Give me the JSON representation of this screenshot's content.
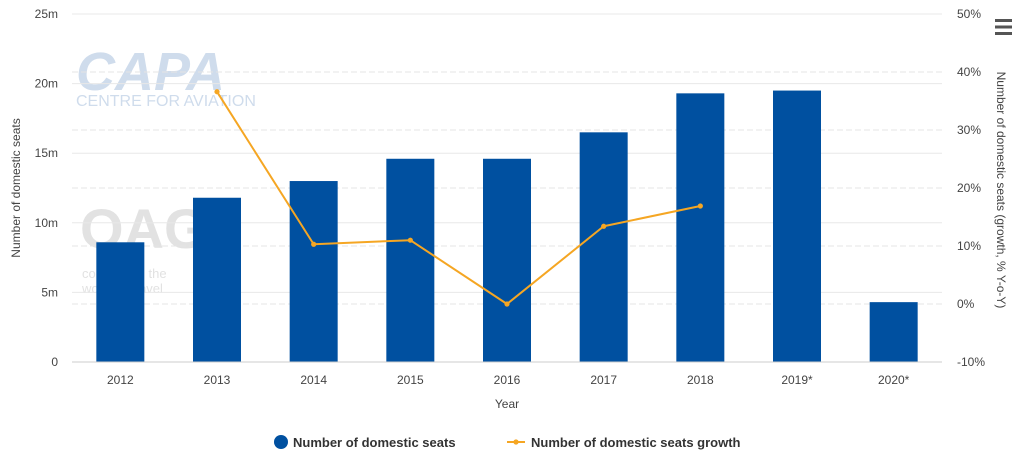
{
  "chart_data": {
    "type": "bar",
    "title": "",
    "xlabel": "Year",
    "ylabel": "Number of domestic seats",
    "y2label": "Number of domestic seats (growth, % Y-o-Y)",
    "categories": [
      "2012",
      "2013",
      "2014",
      "2015",
      "2016",
      "2017",
      "2018",
      "2019*",
      "2020*"
    ],
    "series": [
      {
        "name": "Number of domestic seats",
        "type": "bar",
        "axis": "left",
        "color": "#0050a0",
        "values": [
          8.6,
          11.8,
          13.0,
          14.6,
          14.6,
          16.5,
          19.3,
          19.5,
          4.3
        ]
      },
      {
        "name": "Number of domestic seats growth",
        "type": "line",
        "axis": "right",
        "color": "#f5a623",
        "values": [
          null,
          36.6,
          10.3,
          11.0,
          0.0,
          13.4,
          16.9,
          null,
          null
        ]
      }
    ],
    "ylim": [
      0,
      25
    ],
    "y2lim": [
      -10,
      50
    ],
    "yticks": [
      "0",
      "5m",
      "10m",
      "15m",
      "20m",
      "25m"
    ],
    "y2ticks": [
      "-10%",
      "0%",
      "10%",
      "20%",
      "30%",
      "40%",
      "50%"
    ],
    "grid": true,
    "legend_position": "bottom-center"
  },
  "watermarks": {
    "capa_logo": "CAPA",
    "capa_sub": "CENTRE FOR AVIATION",
    "oag_logo": "OAG",
    "oag_sub_1": "connecting the",
    "oag_sub_2": "world of travel"
  },
  "menu": {
    "icon": "hamburger-menu-icon"
  }
}
